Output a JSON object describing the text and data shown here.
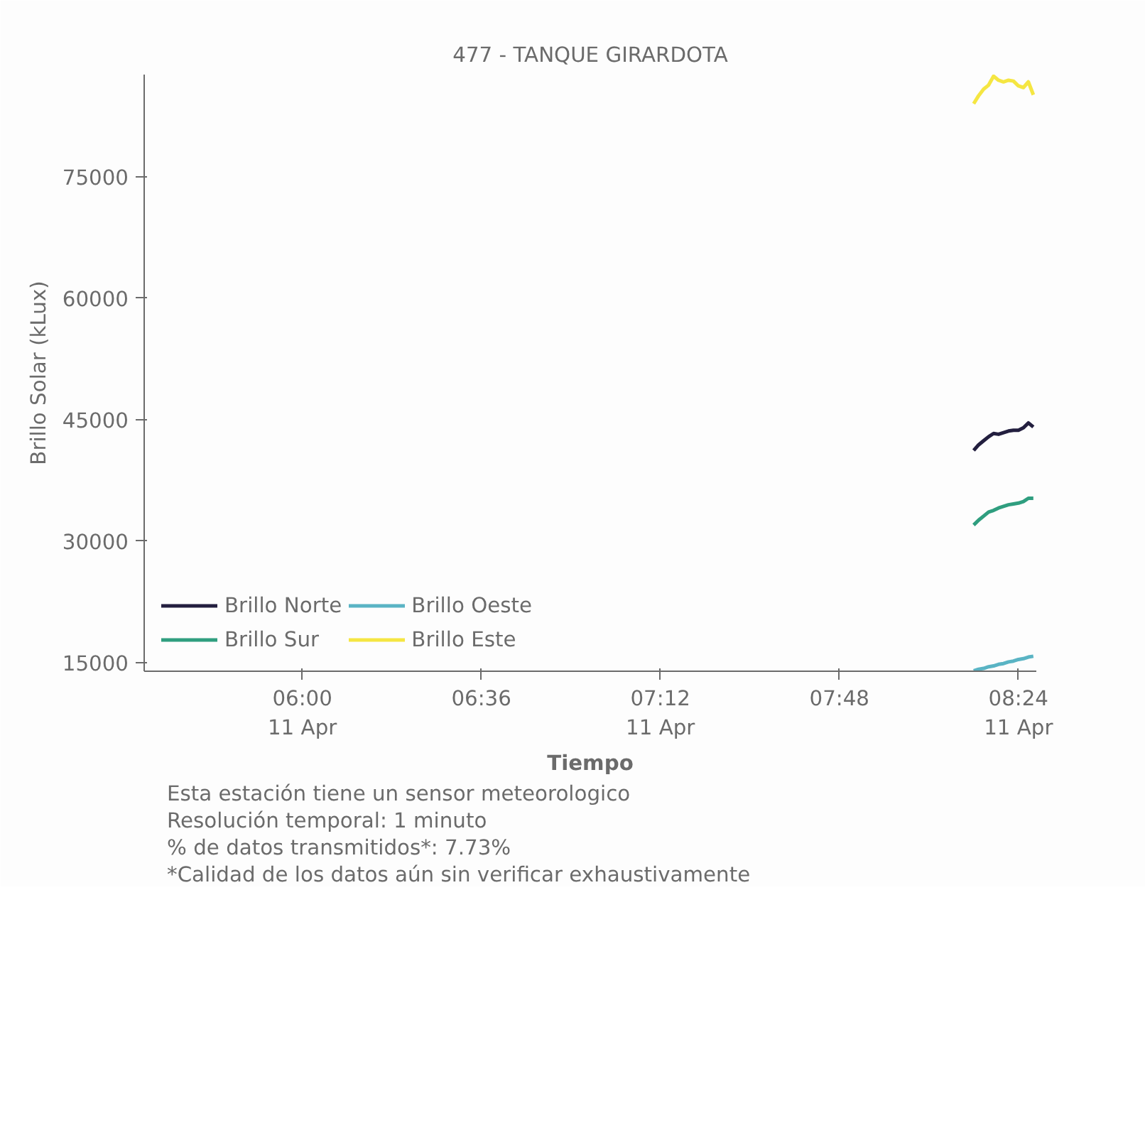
{
  "chart_data": {
    "type": "line",
    "title": "477 - TANQUE GIRARDOTA",
    "xlabel": "Tiempo",
    "ylabel": "Brillo Solar (kLux)",
    "x": [
      8.25,
      8.2667,
      8.2833,
      8.3,
      8.3167,
      8.3333,
      8.35,
      8.3667,
      8.3833,
      8.4,
      8.4167,
      8.4333,
      8.45
    ],
    "series": [
      {
        "name": "Brillo Norte",
        "color": "#231f3f",
        "values": [
          41200,
          41900,
          42400,
          42900,
          43300,
          43200,
          43400,
          43600,
          43700,
          43700,
          44000,
          44600,
          44100
        ]
      },
      {
        "name": "Brillo Sur",
        "color": "#2f9e7f",
        "values": [
          32000,
          32600,
          33100,
          33600,
          33800,
          34100,
          34300,
          34500,
          34600,
          34700,
          34900,
          35300,
          35300
        ]
      },
      {
        "name": "Brillo Oeste",
        "color": "#5ab4c4",
        "values": [
          14000,
          14200,
          14300,
          14500,
          14600,
          14800,
          14900,
          15100,
          15200,
          15400,
          15500,
          15700,
          15800
        ]
      },
      {
        "name": "Brillo Este",
        "color": "#f5e642",
        "values": [
          84000,
          85000,
          85800,
          86300,
          87400,
          86900,
          86700,
          86900,
          86800,
          86200,
          86000,
          86700,
          85100
        ]
      }
    ],
    "xlim": [
      5.47,
      8.46
    ],
    "xticks": [
      {
        "value": 6,
        "label": "06:00\n11 Apr"
      },
      {
        "value": 6.6,
        "label": "06:36"
      },
      {
        "value": 7.2,
        "label": "07:12\n11 Apr"
      },
      {
        "value": 7.8,
        "label": "07:48"
      },
      {
        "value": 8.4,
        "label": "08:24\n11 Apr"
      }
    ],
    "ylim": [
      13950,
      87600
    ],
    "yticks": [
      15000,
      30000,
      45000,
      60000,
      75000
    ],
    "grid": false,
    "legend": "bottom left",
    "annotations": [
      "Esta estación tiene un sensor meteorologico",
      "Resolución temporal: 1 minuto",
      "% de datos transmitidos*: 7.73%",
      "*Calidad de los datos aún sin verificar exhaustivamente"
    ]
  }
}
